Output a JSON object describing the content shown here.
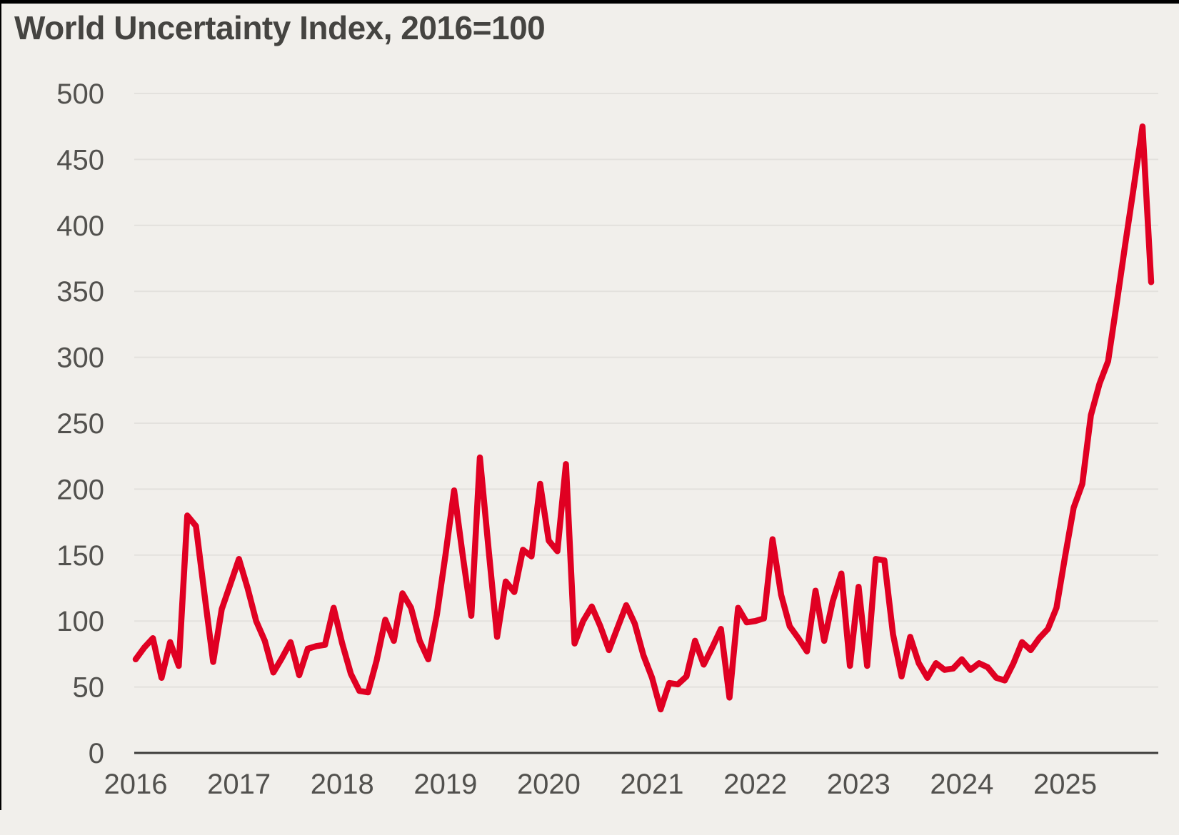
{
  "title": "World Uncertainty Index, 2016=100",
  "colors": {
    "background": "#f1efeb",
    "title_text": "#454441",
    "tick_text": "#52514e",
    "gridline": "#e3e1dd",
    "axis_line": "#3d3c3a",
    "line": "#e00022",
    "page_edge": "#000000"
  },
  "chart_data": {
    "type": "line",
    "title": "World Uncertainty Index, 2016=100",
    "xlabel": "",
    "ylabel": "",
    "frequency": "monthly",
    "x_start": "2016-01",
    "x_end": "2025-11",
    "x_tick_labels": [
      "2016",
      "2017",
      "2018",
      "2019",
      "2020",
      "2021",
      "2022",
      "2023",
      "2024",
      "2025"
    ],
    "ylim": [
      0,
      500
    ],
    "yticks": [
      0,
      50,
      100,
      150,
      200,
      250,
      300,
      350,
      400,
      450,
      500
    ],
    "grid": "horizontal",
    "legend": "none",
    "series": [
      {
        "name": "World Uncertainty Index (2016=100)",
        "color": "#e00022",
        "values": [
          71,
          80,
          87,
          57,
          84,
          66,
          180,
          172,
          120,
          69,
          109,
          128,
          147,
          125,
          100,
          85,
          61,
          72,
          84,
          59,
          79,
          81,
          82,
          110,
          83,
          60,
          47,
          46,
          70,
          101,
          85,
          121,
          110,
          85,
          71,
          105,
          150,
          199,
          150,
          104,
          224,
          155,
          88,
          130,
          122,
          154,
          149,
          204,
          161,
          153,
          219,
          83,
          100,
          111,
          96,
          78,
          95,
          112,
          98,
          74,
          57,
          33,
          53,
          52,
          58,
          85,
          67,
          80,
          94,
          42,
          110,
          99,
          100,
          102,
          162,
          120,
          96,
          87,
          77,
          123,
          85,
          115,
          136,
          66,
          126,
          66,
          147,
          146,
          90,
          58,
          88,
          68,
          57,
          68,
          63,
          64,
          71,
          63,
          68,
          65,
          57,
          55,
          68,
          84,
          78,
          87,
          94,
          110,
          149,
          186,
          204,
          256,
          280,
          297,
          341,
          386,
          430,
          475,
          357
        ]
      }
    ]
  }
}
